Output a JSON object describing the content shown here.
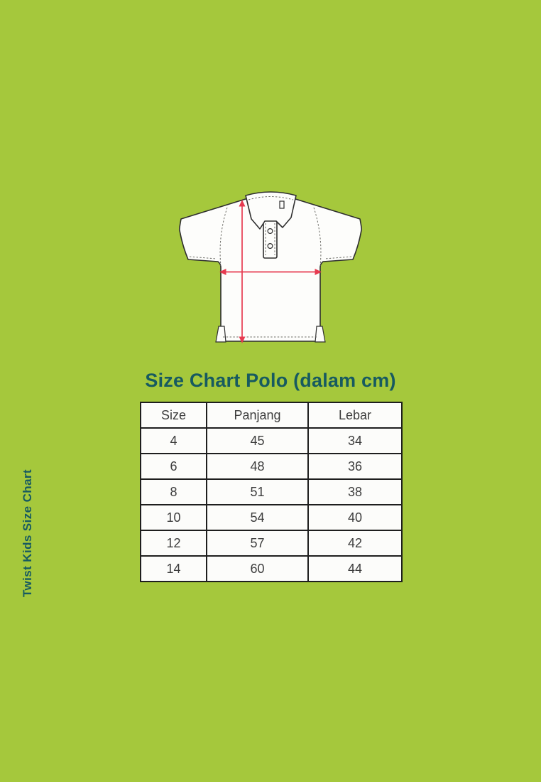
{
  "colors": {
    "background_green": "#a5c83c",
    "teal_text": "#175a60",
    "arrow_red": "#e73a50",
    "table_line": "#1e1e1e",
    "shirt_outline": "#2e2e2e"
  },
  "sidebar_label": "Twist Kids Size Chart",
  "title": "Size Chart Polo (dalam cm)",
  "illustration": {
    "name": "polo-shirt-line-drawing",
    "arrows": [
      "panjang-vertical-arrow",
      "lebar-horizontal-arrow"
    ]
  },
  "chart_data": {
    "type": "table",
    "title": "Size Chart Polo (dalam cm)",
    "units": "cm",
    "columns": [
      "Size",
      "Panjang",
      "Lebar"
    ],
    "rows": [
      [
        "4",
        "45",
        "34"
      ],
      [
        "6",
        "48",
        "36"
      ],
      [
        "8",
        "51",
        "38"
      ],
      [
        "10",
        "54",
        "40"
      ],
      [
        "12",
        "57",
        "42"
      ],
      [
        "14",
        "60",
        "44"
      ]
    ]
  }
}
